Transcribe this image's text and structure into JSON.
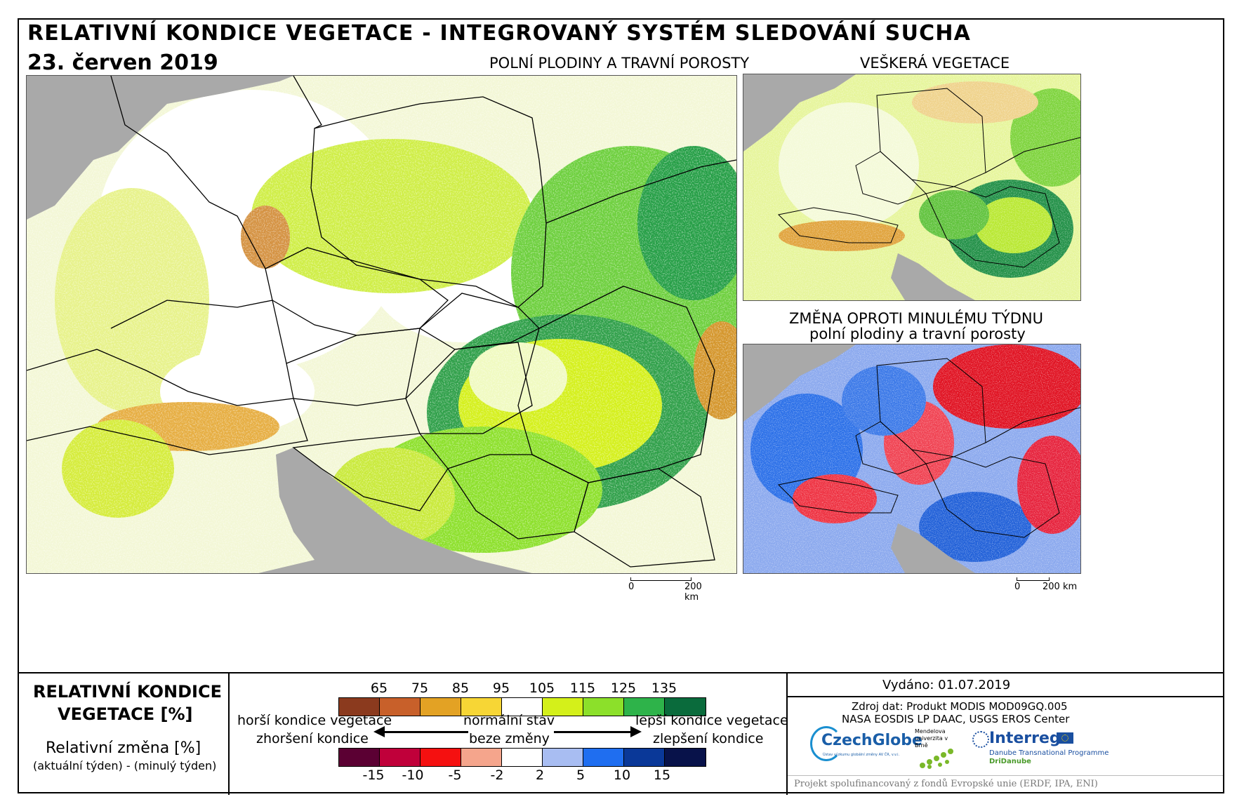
{
  "header": {
    "title": "RELATIVNÍ KONDICE VEGETACE - INTEGROVANÝ SYSTÉM SLEDOVÁNÍ SUCHA",
    "date": "23. červen 2019"
  },
  "maps": {
    "main_title": "POLNÍ PLODINY A TRAVNÍ POROSTY",
    "all_veg_title": "VEŠKERÁ VEGETACE",
    "change_title_1": "ZMĚNA OPROTI MINULÉMU TÝDNU",
    "change_title_2": "polní plodiny a travní porosty"
  },
  "scale_bar": {
    "zero": "0",
    "distance": "200 km"
  },
  "legend": {
    "title_1": "RELATIVNÍ KONDICE",
    "title_2": "VEGETACE [%]",
    "change_title": "Relativní změna [%]",
    "change_formula": "(aktuální týden) - (minulý týden)",
    "condition_ticks": [
      "65",
      "75",
      "85",
      "95",
      "105",
      "115",
      "125",
      "135"
    ],
    "condition_colors": [
      "#8b3a1e",
      "#c8602a",
      "#e3a224",
      "#f7d635",
      "#ffffff",
      "#d4f01a",
      "#8ce02a",
      "#2eb34a",
      "#0a6b3c"
    ],
    "change_ticks": [
      "-15",
      "-10",
      "-5",
      "-2",
      "2",
      "5",
      "10",
      "15"
    ],
    "change_colors": [
      "#5b0033",
      "#c0003a",
      "#f51010",
      "#f5a58c",
      "#ffffff",
      "#a8bdf2",
      "#1f6ef0",
      "#0a3898",
      "#08124a"
    ],
    "worse_condition": "horší kondice vegetace",
    "normal_state": "normální stav",
    "better_condition": "lepší kondice vegetace",
    "worsened": "zhoršení kondice",
    "unchanged": "beze změny",
    "improved": "zlepšení kondice"
  },
  "info": {
    "issued": "Vydáno: 01.07.2019",
    "source_1": "Zdroj dat: Produkt MODIS MOD09GQ.005",
    "source_2": "NASA EOSDIS LP DAAC, USGS EROS Center",
    "funding": "Projekt spolufinancovaný z fondů Evropské unie (ERDF, IPA, ENI)"
  },
  "logos": {
    "czechglobe": "CzechGlobe",
    "czechglobe_sub": "Ústav výzkumu globální změny AV ČR, v.v.i.",
    "mendel": "Mendelova univerzita v Brně",
    "interreg": "Interreg",
    "interreg_sub": "Danube Transnational Programme",
    "dridanube": "DriDanube"
  }
}
